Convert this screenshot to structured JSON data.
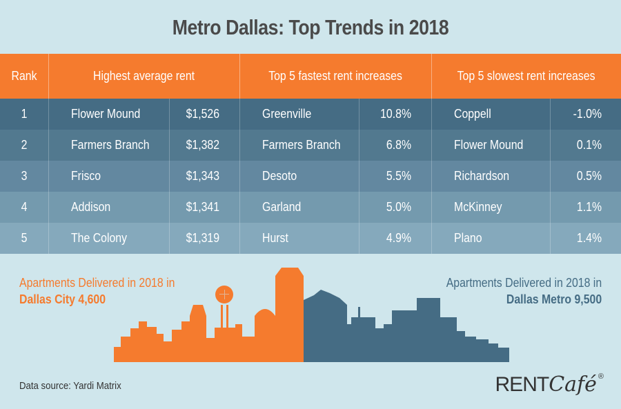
{
  "title": "Metro Dallas: Top Trends in 2018",
  "table": {
    "headers": {
      "rank": "Rank",
      "highest": "Highest average rent",
      "fastest": "Top 5 fastest rent increases",
      "slowest": "Top 5 slowest rent increases"
    },
    "rows": [
      {
        "rank": "1",
        "high_city": "Flower Mound",
        "high_rent": "$1,526",
        "fast_city": "Greenville",
        "fast_pct": "10.8%",
        "slow_city": "Coppell",
        "slow_pct": "-1.0%"
      },
      {
        "rank": "2",
        "high_city": "Farmers Branch",
        "high_rent": "$1,382",
        "fast_city": "Farmers Branch",
        "fast_pct": "6.8%",
        "slow_city": "Flower Mound",
        "slow_pct": "0.1%"
      },
      {
        "rank": "3",
        "high_city": "Frisco",
        "high_rent": "$1,343",
        "fast_city": "Desoto",
        "fast_pct": "5.5%",
        "slow_city": "Richardson",
        "slow_pct": "0.5%"
      },
      {
        "rank": "4",
        "high_city": "Addison",
        "high_rent": "$1,341",
        "fast_city": "Garland",
        "fast_pct": "5.0%",
        "slow_city": "McKinney",
        "slow_pct": "1.1%"
      },
      {
        "rank": "5",
        "high_city": "The Colony",
        "high_rent": "$1,319",
        "fast_city": "Hurst",
        "fast_pct": "4.9%",
        "slow_city": "Plano",
        "slow_pct": "1.4%"
      }
    ]
  },
  "delivered": {
    "city_label": "Apartments Delivered in 2018 in",
    "city_value": "Dallas City 4,600",
    "metro_label": "Apartments Delivered in 2018 in",
    "metro_value": "Dallas Metro 9,500"
  },
  "footer": {
    "source": "Data source:  Yardi Matrix",
    "logo_rent": "RENT",
    "logo_cafe": "Café",
    "logo_reg": "®"
  },
  "colors": {
    "orange": "#f57b2e",
    "blue": "#456c84",
    "background": "#cfe6ec"
  }
}
